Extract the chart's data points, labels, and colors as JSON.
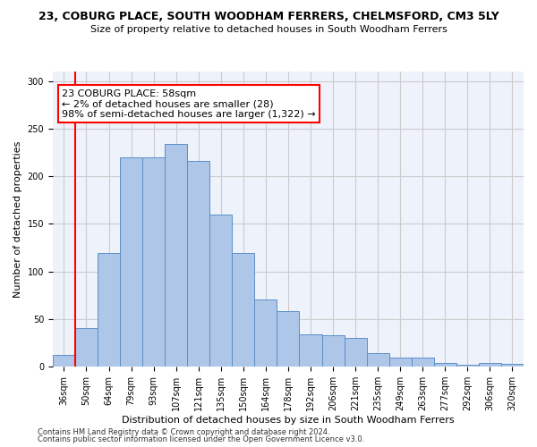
{
  "title": "23, COBURG PLACE, SOUTH WOODHAM FERRERS, CHELMSFORD, CM3 5LY",
  "subtitle": "Size of property relative to detached houses in South Woodham Ferrers",
  "xlabel": "Distribution of detached houses by size in South Woodham Ferrers",
  "ylabel": "Number of detached properties",
  "categories": [
    "36sqm",
    "50sqm",
    "64sqm",
    "79sqm",
    "93sqm",
    "107sqm",
    "121sqm",
    "135sqm",
    "150sqm",
    "164sqm",
    "178sqm",
    "192sqm",
    "206sqm",
    "221sqm",
    "235sqm",
    "249sqm",
    "263sqm",
    "277sqm",
    "292sqm",
    "306sqm",
    "320sqm"
  ],
  "values": [
    12,
    41,
    119,
    220,
    220,
    234,
    216,
    160,
    119,
    71,
    58,
    34,
    33,
    30,
    14,
    10,
    10,
    4,
    2,
    4,
    3
  ],
  "bar_color": "#aec6e8",
  "bar_edge_color": "#5b8fc9",
  "vline_color": "red",
  "vline_x_index": 1,
  "annotation_text": "23 COBURG PLACE: 58sqm\n← 2% of detached houses are smaller (28)\n98% of semi-detached houses are larger (1,322) →",
  "annotation_box_color": "white",
  "annotation_box_edge_color": "red",
  "footnote1": "Contains HM Land Registry data © Crown copyright and database right 2024.",
  "footnote2": "Contains public sector information licensed under the Open Government Licence v3.0.",
  "ylim": [
    0,
    310
  ],
  "yticks": [
    0,
    50,
    100,
    150,
    200,
    250,
    300
  ],
  "grid_color": "#cccccc",
  "background_color": "#eef2fb",
  "fig_background": "white",
  "title_fontsize": 9,
  "subtitle_fontsize": 8,
  "ylabel_fontsize": 8,
  "xlabel_fontsize": 8,
  "tick_fontsize": 7,
  "footnote_fontsize": 6,
  "annotation_fontsize": 8
}
